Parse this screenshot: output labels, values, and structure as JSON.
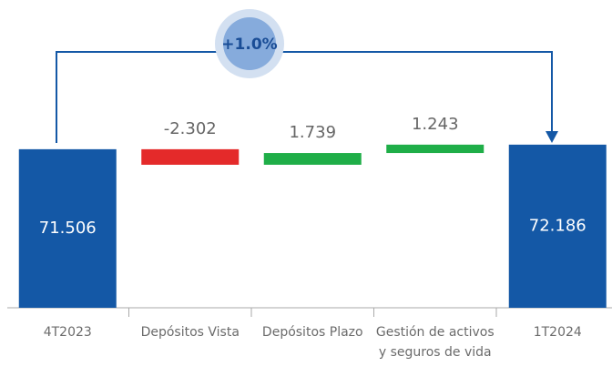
{
  "chart_data": {
    "type": "waterfall",
    "categories": [
      "4T2023",
      "Depósitos Vista",
      "Depósitos Plazo",
      "Gestión de activos y seguros de vida",
      "1T2024"
    ],
    "values": [
      71506,
      -2302,
      1739,
      1243,
      72186
    ],
    "value_labels": [
      "71.506",
      "-2.302",
      "1.739",
      "1.243",
      "72.186"
    ],
    "totals": [
      true,
      false,
      false,
      false,
      true
    ],
    "colors": {
      "total": "#1458a6",
      "decrease": "#e42a2a",
      "increase": "#1fae48"
    },
    "ylim": [
      48000,
      75000
    ],
    "annotation": "+1.0%"
  }
}
